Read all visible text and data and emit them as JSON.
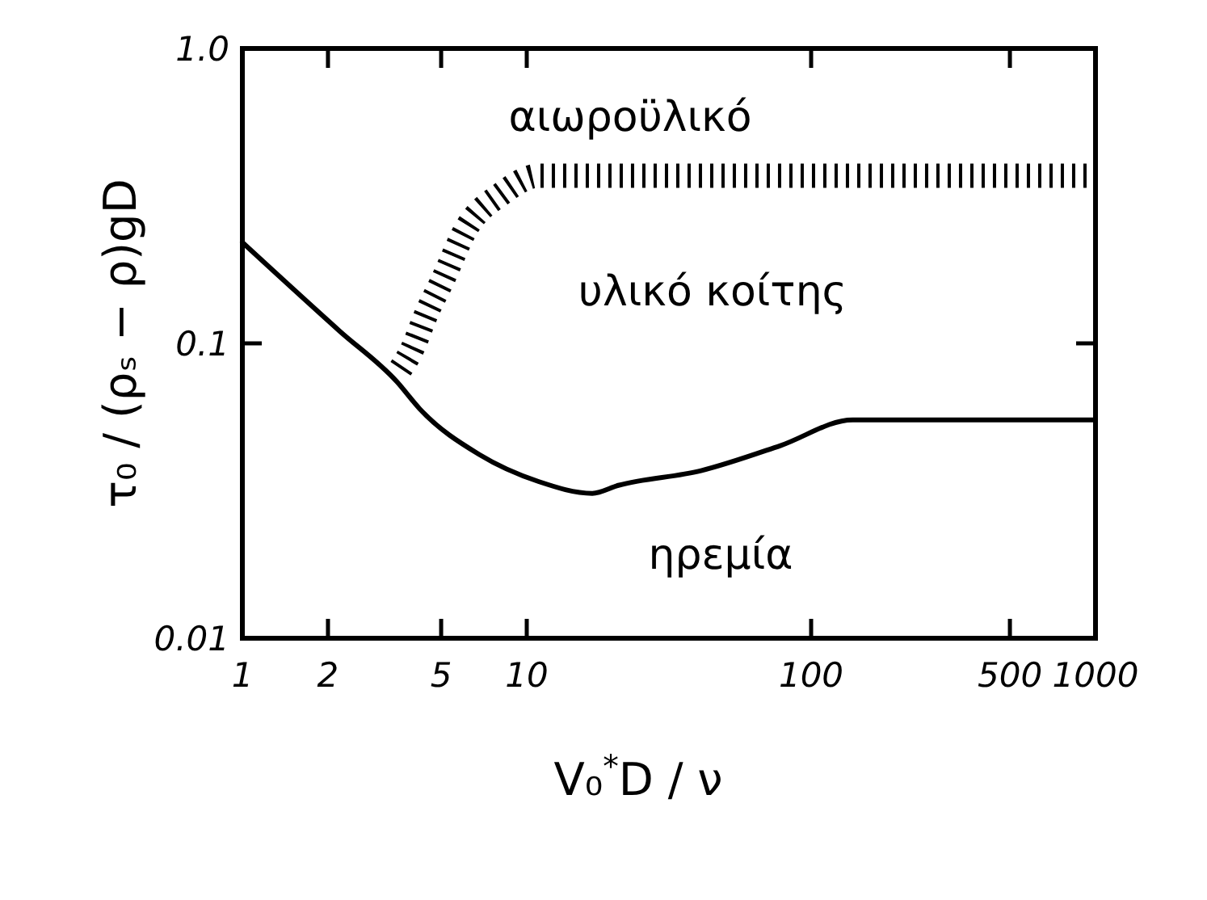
{
  "chart_data": {
    "type": "line",
    "xlabel": "V₀$^{*}$D / ν",
    "ylabel": "τ₀ / (ρₛ − ρ)gD",
    "log": "xy",
    "xlim": [
      1,
      1000
    ],
    "ylim": [
      0.01,
      1
    ],
    "xticks": [
      1,
      2,
      5,
      10,
      100,
      500,
      1000
    ],
    "yticks": [
      0.01,
      0.1,
      {
        "value": 1,
        "label": "1.0"
      }
    ],
    "series": [
      {
        "type": "line",
        "color": "#000000",
        "line_style": "solid",
        "x": [
          1,
          2.2,
          3.5,
          4.2,
          6.8,
          11,
          17,
          21,
          41,
          78,
          140,
          360,
          1000
        ],
        "values": [
          0.22,
          0.11,
          0.074,
          0.06,
          0.042,
          0.034,
          0.031,
          0.033,
          0.037,
          0.045,
          0.055,
          0.055,
          0.055
        ]
      },
      {
        "type": "line",
        "color": "#000000",
        "line_style": "dashed",
        "x": [
          3.6,
          3.9,
          4.5,
          5,
          6.2,
          8.1,
          11,
          1000
        ],
        "values": [
          0.082,
          0.093,
          0.13,
          0.16,
          0.25,
          0.32,
          0.37,
          0.37
        ]
      }
    ],
    "annotations": [
      "αιωροϋλικό",
      "υλικό κοίτης",
      "ηρεμία"
    ]
  }
}
